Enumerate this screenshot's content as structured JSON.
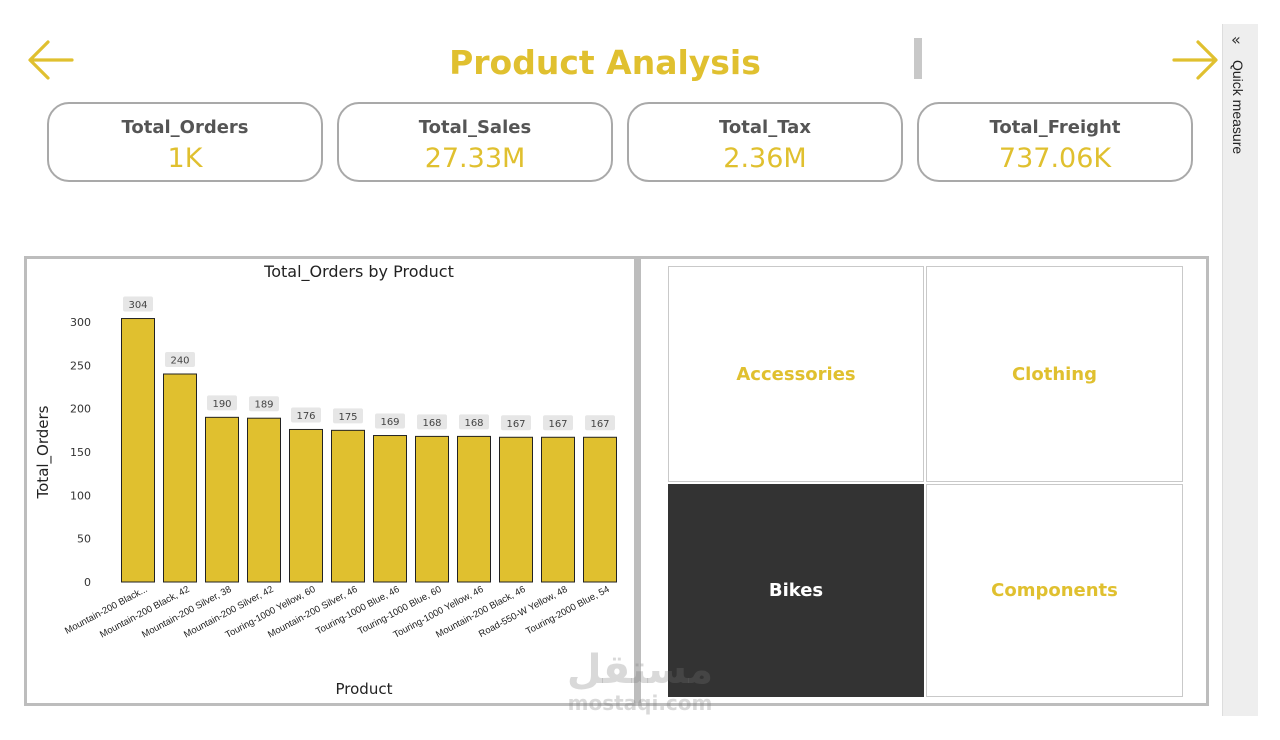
{
  "page_title": "Product Analysis",
  "colors": {
    "accent": "#E0C02F",
    "selected_tile": "#333333",
    "border": "#BDBDBD"
  },
  "nav": {
    "back_icon": "arrow-left-icon",
    "forward_icon": "arrow-right-icon"
  },
  "kpis": [
    {
      "label": "Total_Orders",
      "value": "1K"
    },
    {
      "label": "Total_Sales",
      "value": "27.33M"
    },
    {
      "label": "Total_Tax",
      "value": "2.36M"
    },
    {
      "label": "Total_Freight",
      "value": "737.06K"
    }
  ],
  "chart_data": {
    "type": "bar",
    "title": "Total_Orders by Product",
    "xlabel": "Product",
    "ylabel": "Total_Orders",
    "ylim": [
      0,
      300
    ],
    "yticks": [
      0,
      50,
      100,
      150,
      200,
      250,
      300
    ],
    "categories": [
      "Mountain-200 Black...",
      "Mountain-200 Black, 42",
      "Mountain-200 Silver, 38",
      "Mountain-200 Silver, 42",
      "Touring-1000 Yellow, 60",
      "Mountain-200 Silver, 46",
      "Touring-1000 Blue, 46",
      "Touring-1000 Blue, 60",
      "Touring-1000 Yellow, 46",
      "Mountain-200 Black, 46",
      "Road-550-W Yellow, 48",
      "Touring-2000 Blue, 54"
    ],
    "values": [
      304,
      240,
      190,
      189,
      176,
      175,
      169,
      168,
      168,
      167,
      167,
      167
    ],
    "data_labels": true,
    "bar_color": "#E0C02F"
  },
  "categories_panel": {
    "tiles": [
      {
        "label": "Accessories",
        "selected": false
      },
      {
        "label": "Clothing",
        "selected": false
      },
      {
        "label": "Bikes",
        "selected": true
      },
      {
        "label": "Components",
        "selected": false
      }
    ]
  },
  "side_pane": {
    "label": "Quick measure",
    "collapse_icon": "double-chevron-left-icon"
  },
  "watermark": {
    "arabic": "مستقل",
    "latin": "mostaqi.com"
  }
}
